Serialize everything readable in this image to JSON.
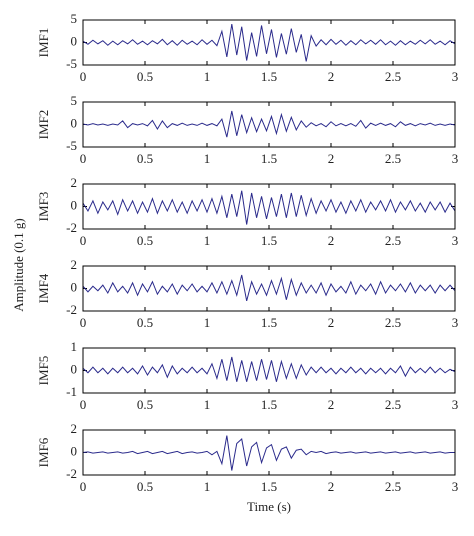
{
  "ylabel": "Amplitude (0.1 g)",
  "chart_data": [
    {
      "type": "line",
      "ylabel": "IMF1",
      "color": "#2b2b8c",
      "xlim": [
        0,
        3
      ],
      "ylim": [
        -5,
        5
      ],
      "xticks": [
        0,
        0.5,
        1,
        1.5,
        2,
        2.5,
        3
      ],
      "yticks": [
        -5,
        0,
        5
      ],
      "x": [
        0,
        0.04,
        0.08,
        0.12,
        0.16,
        0.2,
        0.24,
        0.28,
        0.32,
        0.36,
        0.4,
        0.44,
        0.48,
        0.52,
        0.56,
        0.6,
        0.64,
        0.68,
        0.72,
        0.76,
        0.8,
        0.84,
        0.88,
        0.92,
        0.96,
        1,
        1.04,
        1.08,
        1.12,
        1.16,
        1.2,
        1.24,
        1.28,
        1.32,
        1.36,
        1.4,
        1.44,
        1.48,
        1.52,
        1.56,
        1.6,
        1.64,
        1.68,
        1.72,
        1.76,
        1.8,
        1.84,
        1.88,
        1.92,
        1.96,
        2,
        2.04,
        2.08,
        2.12,
        2.16,
        2.2,
        2.24,
        2.28,
        2.32,
        2.36,
        2.4,
        2.44,
        2.48,
        2.52,
        2.56,
        2.6,
        2.64,
        2.68,
        2.72,
        2.76,
        2.8,
        2.84,
        2.88,
        2.92,
        2.96,
        3
      ],
      "values": [
        0.3,
        -0.4,
        0.5,
        -0.3,
        0.4,
        -0.6,
        0.3,
        -0.5,
        0.4,
        -0.3,
        0.6,
        -0.4,
        0.3,
        -0.5,
        0.4,
        -0.3,
        0.7,
        -0.5,
        0.4,
        -0.6,
        0.5,
        -0.4,
        0.3,
        -0.5,
        0.6,
        -0.4,
        0.5,
        -0.7,
        2.5,
        -3.2,
        4.1,
        -2.8,
        3.5,
        -4,
        2.2,
        -3.1,
        3.8,
        -2.5,
        2.9,
        -3.3,
        2,
        -2.6,
        3.1,
        -2.2,
        1.8,
        -4.2,
        1.5,
        -0.8,
        0.6,
        -0.5,
        0.7,
        -0.4,
        0.5,
        -0.6,
        0.4,
        -0.5,
        0.6,
        -0.3,
        0.5,
        -0.4,
        0.6,
        -0.5,
        0.3,
        -0.6,
        0.4,
        -0.5,
        0.3,
        -0.4,
        0.5,
        -0.3,
        0.6,
        -0.4,
        0.3,
        -0.5,
        0.4,
        -0.3
      ]
    },
    {
      "type": "line",
      "ylabel": "IMF2",
      "color": "#2b2b8c",
      "xlim": [
        0,
        3
      ],
      "ylim": [
        -5,
        5
      ],
      "xticks": [
        0,
        0.5,
        1,
        1.5,
        2,
        2.5,
        3
      ],
      "yticks": [
        -5,
        0,
        5
      ],
      "x": [
        0,
        0.04,
        0.08,
        0.12,
        0.16,
        0.2,
        0.24,
        0.28,
        0.32,
        0.36,
        0.4,
        0.44,
        0.48,
        0.52,
        0.56,
        0.6,
        0.64,
        0.68,
        0.72,
        0.76,
        0.8,
        0.84,
        0.88,
        0.92,
        0.96,
        1,
        1.04,
        1.08,
        1.12,
        1.16,
        1.2,
        1.24,
        1.28,
        1.32,
        1.36,
        1.4,
        1.44,
        1.48,
        1.52,
        1.56,
        1.6,
        1.64,
        1.68,
        1.72,
        1.76,
        1.8,
        1.84,
        1.88,
        1.92,
        1.96,
        2,
        2.04,
        2.08,
        2.12,
        2.16,
        2.2,
        2.24,
        2.28,
        2.32,
        2.36,
        2.4,
        2.44,
        2.48,
        2.52,
        2.56,
        2.6,
        2.64,
        2.68,
        2.72,
        2.76,
        2.8,
        2.84,
        2.88,
        2.92,
        2.96,
        3
      ],
      "values": [
        0.1,
        -0.1,
        0.2,
        -0.1,
        0.1,
        -0.2,
        0.1,
        -0.1,
        0.8,
        -0.7,
        0.2,
        -0.1,
        0.2,
        -0.3,
        0.9,
        -1,
        0.8,
        -0.7,
        0.2,
        -0.2,
        0.3,
        -0.2,
        0.1,
        -0.2,
        0.3,
        -0.2,
        0.2,
        -0.3,
        1.2,
        -2.8,
        3,
        -2.5,
        2.2,
        -1.8,
        1.5,
        -1.6,
        1.2,
        -1.4,
        1.8,
        -2,
        2.2,
        -1.5,
        1.6,
        -1.2,
        0.8,
        -0.6,
        0.4,
        -0.3,
        0.2,
        -0.5,
        0.6,
        -0.3,
        0.2,
        -0.3,
        0.2,
        -0.4,
        0.9,
        -0.8,
        0.3,
        -0.2,
        0.3,
        -0.2,
        0.2,
        -0.5,
        0.6,
        -0.2,
        0.2,
        -0.3,
        0.2,
        -0.1,
        0.3,
        -0.2,
        0.1,
        -0.2,
        0.1,
        -0.1
      ]
    },
    {
      "type": "line",
      "ylabel": "IMF3",
      "color": "#2b2b8c",
      "xlim": [
        0,
        3
      ],
      "ylim": [
        -2,
        2
      ],
      "xticks": [
        0,
        0.5,
        1,
        1.5,
        2,
        2.5,
        3
      ],
      "yticks": [
        -2,
        0,
        2
      ],
      "x": [
        0,
        0.04,
        0.08,
        0.12,
        0.16,
        0.2,
        0.24,
        0.28,
        0.32,
        0.36,
        0.4,
        0.44,
        0.48,
        0.52,
        0.56,
        0.6,
        0.64,
        0.68,
        0.72,
        0.76,
        0.8,
        0.84,
        0.88,
        0.92,
        0.96,
        1,
        1.04,
        1.08,
        1.12,
        1.16,
        1.2,
        1.24,
        1.28,
        1.32,
        1.36,
        1.4,
        1.44,
        1.48,
        1.52,
        1.56,
        1.6,
        1.64,
        1.68,
        1.72,
        1.76,
        1.8,
        1.84,
        1.88,
        1.92,
        1.96,
        2,
        2.04,
        2.08,
        2.12,
        2.16,
        2.2,
        2.24,
        2.28,
        2.32,
        2.36,
        2.4,
        2.44,
        2.48,
        2.52,
        2.56,
        2.6,
        2.64,
        2.68,
        2.72,
        2.76,
        2.8,
        2.84,
        2.88,
        2.92,
        2.96,
        3
      ],
      "values": [
        0.3,
        -0.4,
        0.5,
        -0.6,
        0.4,
        -0.3,
        0.5,
        -0.7,
        0.6,
        -0.4,
        0.5,
        -0.6,
        0.4,
        -0.5,
        0.7,
        -0.6,
        0.5,
        -0.4,
        0.6,
        -0.5,
        0.4,
        -0.6,
        0.5,
        -0.4,
        0.6,
        -0.5,
        0.7,
        -0.6,
        0.9,
        -1,
        1.1,
        -0.9,
        1.4,
        -1.6,
        1.2,
        -1,
        0.9,
        -1.1,
        0.8,
        -0.9,
        1.1,
        -1,
        1.2,
        -0.9,
        1,
        -0.8,
        0.7,
        -0.6,
        0.5,
        -0.4,
        0.6,
        -0.5,
        0.4,
        -0.6,
        0.5,
        -0.4,
        0.6,
        -0.5,
        0.4,
        -0.3,
        0.5,
        -0.4,
        0.6,
        -0.5,
        0.4,
        -0.3,
        0.5,
        -0.4,
        0.3,
        -0.5,
        0.4,
        -0.3,
        0.4,
        -0.5,
        0.3,
        -0.4
      ]
    },
    {
      "type": "line",
      "ylabel": "IMF4",
      "color": "#2b2b8c",
      "xlim": [
        0,
        3
      ],
      "ylim": [
        -2,
        2
      ],
      "xticks": [
        0,
        0.5,
        1,
        1.5,
        2,
        2.5,
        3
      ],
      "yticks": [
        -2,
        0,
        2
      ],
      "x": [
        0,
        0.04,
        0.08,
        0.12,
        0.16,
        0.2,
        0.24,
        0.28,
        0.32,
        0.36,
        0.4,
        0.44,
        0.48,
        0.52,
        0.56,
        0.6,
        0.64,
        0.68,
        0.72,
        0.76,
        0.8,
        0.84,
        0.88,
        0.92,
        0.96,
        1,
        1.04,
        1.08,
        1.12,
        1.16,
        1.2,
        1.24,
        1.28,
        1.32,
        1.36,
        1.4,
        1.44,
        1.48,
        1.52,
        1.56,
        1.6,
        1.64,
        1.68,
        1.72,
        1.76,
        1.8,
        1.84,
        1.88,
        1.92,
        1.96,
        2,
        2.04,
        2.08,
        2.12,
        2.16,
        2.2,
        2.24,
        2.28,
        2.32,
        2.36,
        2.4,
        2.44,
        2.48,
        2.52,
        2.56,
        2.6,
        2.64,
        2.68,
        2.72,
        2.76,
        2.8,
        2.84,
        2.88,
        2.92,
        2.96,
        3
      ],
      "values": [
        0.2,
        -0.3,
        0.2,
        -0.2,
        0.3,
        -0.4,
        0.5,
        -0.3,
        0.2,
        -0.4,
        0.5,
        -0.6,
        0.4,
        -0.3,
        0.6,
        -0.5,
        0.2,
        -0.3,
        0.4,
        -0.5,
        0.3,
        -0.2,
        0.4,
        -0.3,
        0.2,
        -0.3,
        0.5,
        -0.4,
        0.6,
        -0.5,
        0.7,
        -0.6,
        1.2,
        -1.1,
        0.6,
        -0.5,
        0.4,
        -0.6,
        0.7,
        -0.5,
        0.9,
        -1,
        0.8,
        -0.6,
        0.5,
        -0.4,
        0.3,
        -0.4,
        0.5,
        -0.6,
        0.4,
        -0.3,
        0.2,
        -0.4,
        0.6,
        -0.5,
        0.3,
        -0.2,
        0.4,
        -0.5,
        0.6,
        -0.4,
        0.3,
        -0.2,
        0.4,
        -0.3,
        0.5,
        -0.4,
        0.3,
        -0.2,
        0.3,
        -0.4,
        0.3,
        -0.2,
        0.3,
        -0.2
      ]
    },
    {
      "type": "line",
      "ylabel": "IMF5",
      "color": "#2b2b8c",
      "xlim": [
        0,
        3
      ],
      "ylim": [
        -1,
        1
      ],
      "xticks": [
        0,
        0.5,
        1,
        1.5,
        2,
        2.5,
        3
      ],
      "yticks": [
        -1,
        0,
        1
      ],
      "x": [
        0,
        0.04,
        0.08,
        0.12,
        0.16,
        0.2,
        0.24,
        0.28,
        0.32,
        0.36,
        0.4,
        0.44,
        0.48,
        0.52,
        0.56,
        0.6,
        0.64,
        0.68,
        0.72,
        0.76,
        0.8,
        0.84,
        0.88,
        0.92,
        0.96,
        1,
        1.04,
        1.08,
        1.12,
        1.16,
        1.2,
        1.24,
        1.28,
        1.32,
        1.36,
        1.4,
        1.44,
        1.48,
        1.52,
        1.56,
        1.6,
        1.64,
        1.68,
        1.72,
        1.76,
        1.8,
        1.84,
        1.88,
        1.92,
        1.96,
        2,
        2.04,
        2.08,
        2.12,
        2.16,
        2.2,
        2.24,
        2.28,
        2.32,
        2.36,
        2.4,
        2.44,
        2.48,
        2.52,
        2.56,
        2.6,
        2.64,
        2.68,
        2.72,
        2.76,
        2.8,
        2.84,
        2.88,
        2.92,
        2.96,
        3
      ],
      "values": [
        0.1,
        -0.1,
        0.15,
        -0.1,
        0.1,
        -0.15,
        0.1,
        -0.1,
        0.15,
        -0.1,
        0.1,
        -0.15,
        0.2,
        -0.2,
        0.15,
        -0.1,
        0.25,
        -0.3,
        0.2,
        -0.15,
        0.1,
        -0.1,
        0.15,
        -0.1,
        0.1,
        -0.15,
        0.3,
        -0.35,
        0.5,
        -0.45,
        0.6,
        -0.5,
        0.45,
        -0.5,
        0.4,
        -0.45,
        0.5,
        -0.4,
        0.45,
        -0.5,
        0.4,
        -0.35,
        0.3,
        -0.35,
        0.25,
        -0.2,
        0.15,
        -0.1,
        0.15,
        -0.1,
        0.1,
        -0.15,
        0.1,
        -0.1,
        0.15,
        -0.1,
        0.1,
        -0.15,
        0.1,
        -0.1,
        0.1,
        -0.15,
        0.1,
        -0.1,
        0.2,
        -0.25,
        0.15,
        -0.1,
        0.1,
        -0.1,
        0.15,
        -0.1,
        0.1,
        -0.1,
        0.05,
        -0.05
      ]
    },
    {
      "type": "line",
      "ylabel": "IMF6",
      "xlabel": "Time (s)",
      "color": "#2b2b8c",
      "xlim": [
        0,
        3
      ],
      "ylim": [
        -2,
        2
      ],
      "xticks": [
        0,
        0.5,
        1,
        1.5,
        2,
        2.5,
        3
      ],
      "yticks": [
        -2,
        0,
        2
      ],
      "x": [
        0,
        0.04,
        0.08,
        0.12,
        0.16,
        0.2,
        0.24,
        0.28,
        0.32,
        0.36,
        0.4,
        0.44,
        0.48,
        0.52,
        0.56,
        0.6,
        0.64,
        0.68,
        0.72,
        0.76,
        0.8,
        0.84,
        0.88,
        0.92,
        0.96,
        1,
        1.04,
        1.08,
        1.12,
        1.16,
        1.2,
        1.24,
        1.28,
        1.32,
        1.36,
        1.4,
        1.44,
        1.48,
        1.52,
        1.56,
        1.6,
        1.64,
        1.68,
        1.72,
        1.76,
        1.8,
        1.84,
        1.88,
        1.92,
        1.96,
        2,
        2.04,
        2.08,
        2.12,
        2.16,
        2.2,
        2.24,
        2.28,
        2.32,
        2.36,
        2.4,
        2.44,
        2.48,
        2.52,
        2.56,
        2.6,
        2.64,
        2.68,
        2.72,
        2.76,
        2.8,
        2.84,
        2.88,
        2.92,
        2.96,
        3
      ],
      "values": [
        0,
        0.05,
        -0.05,
        0,
        0.05,
        -0.05,
        0,
        0.05,
        -0.05,
        0,
        0.1,
        -0.1,
        0,
        0.1,
        -0.1,
        0,
        0.1,
        -0.1,
        0,
        0.1,
        -0.1,
        0,
        0.05,
        -0.05,
        0,
        0.1,
        -0.2,
        0.1,
        -1,
        1.5,
        -1.6,
        0.8,
        1.2,
        -1.2,
        0.5,
        0.9,
        -0.9,
        0.4,
        0.7,
        -0.7,
        0.3,
        0.5,
        -0.5,
        0.2,
        0.3,
        -0.2,
        0.1,
        0,
        0.1,
        -0.1,
        0,
        0.05,
        -0.05,
        0,
        0.05,
        -0.05,
        0,
        0.05,
        -0.05,
        0,
        0.05,
        -0.05,
        0,
        0.05,
        -0.05,
        0,
        0.05,
        -0.05,
        0,
        0.05,
        -0.05,
        0,
        0.05,
        -0.05,
        0,
        0
      ]
    }
  ]
}
